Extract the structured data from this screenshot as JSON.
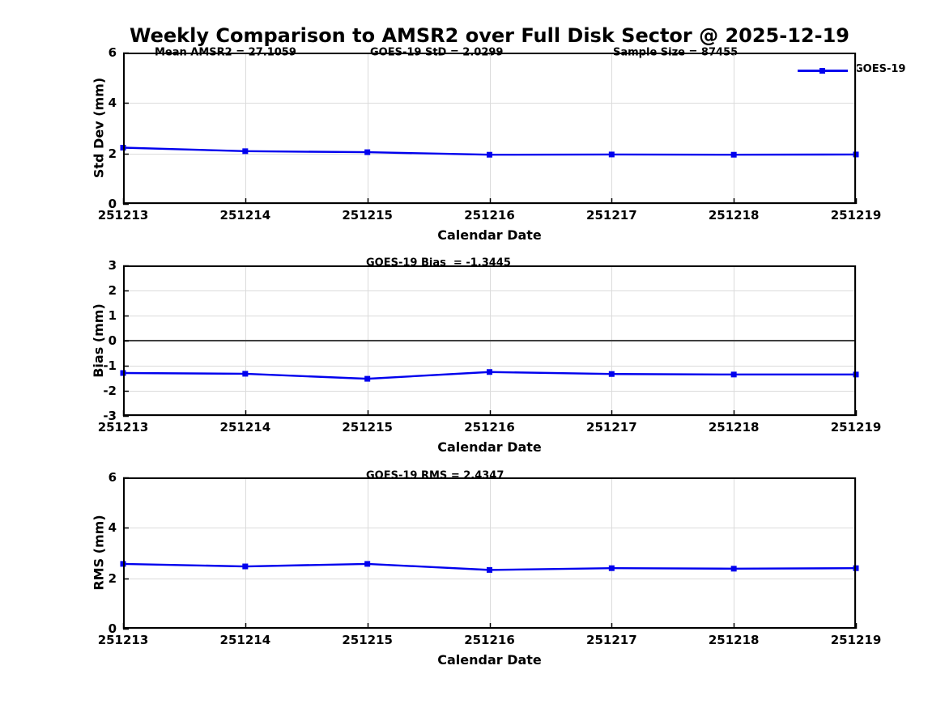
{
  "title": "Weekly Comparison to AMSR2 over Full Disk Sector @ 2025-12-19",
  "legend": {
    "label": "GOES-19",
    "position": "top-right"
  },
  "colors": {
    "series": "#0000EE",
    "marker": "#0000EE",
    "grid": "#DBDBDB",
    "axis": "#000000",
    "zero_line": "#3F3F3F",
    "background": "#FFFFFF",
    "text": "#000000"
  },
  "chart_data": [
    {
      "name": "std-dev-panel",
      "type": "line",
      "annotations": [
        "Mean AMSR2 = 27.1059",
        "GOES-19 StD = 2.0299",
        "Sample Size = 87455"
      ],
      "categories": [
        "251213",
        "251214",
        "251215",
        "251216",
        "251217",
        "251218",
        "251219"
      ],
      "series": [
        {
          "name": "GOES-19",
          "values": [
            2.23,
            2.09,
            2.05,
            1.95,
            1.96,
            1.95,
            1.96
          ]
        }
      ],
      "xlabel": "Calendar Date",
      "ylabel": "Std Dev (mm)",
      "ylim": [
        0,
        6
      ],
      "yticks": [
        0,
        2,
        4,
        6
      ],
      "grid": true,
      "zero_line": false,
      "legend_visible": true
    },
    {
      "name": "bias-panel",
      "type": "line",
      "annotations": [
        "GOES-19 Bias  = -1.3445"
      ],
      "categories": [
        "251213",
        "251214",
        "251215",
        "251216",
        "251217",
        "251218",
        "251219"
      ],
      "series": [
        {
          "name": "GOES-19",
          "values": [
            -1.29,
            -1.32,
            -1.52,
            -1.25,
            -1.33,
            -1.35,
            -1.35
          ]
        }
      ],
      "xlabel": "Calendar Date",
      "ylabel": "Bias (mm)",
      "ylim": [
        -3,
        3
      ],
      "yticks": [
        -3,
        -2,
        -1,
        0,
        1,
        2,
        3
      ],
      "grid": true,
      "zero_line": true,
      "legend_visible": false
    },
    {
      "name": "rms-panel",
      "type": "line",
      "annotations": [
        "GOES-19 RMS = 2.4347"
      ],
      "categories": [
        "251213",
        "251214",
        "251215",
        "251216",
        "251217",
        "251218",
        "251219"
      ],
      "series": [
        {
          "name": "GOES-19",
          "values": [
            2.57,
            2.47,
            2.57,
            2.33,
            2.4,
            2.38,
            2.4
          ]
        }
      ],
      "xlabel": "Calendar Date",
      "ylabel": "RMS (mm)",
      "ylim": [
        0,
        6
      ],
      "yticks": [
        0,
        2,
        4,
        6
      ],
      "grid": true,
      "zero_line": false,
      "legend_visible": false
    }
  ]
}
